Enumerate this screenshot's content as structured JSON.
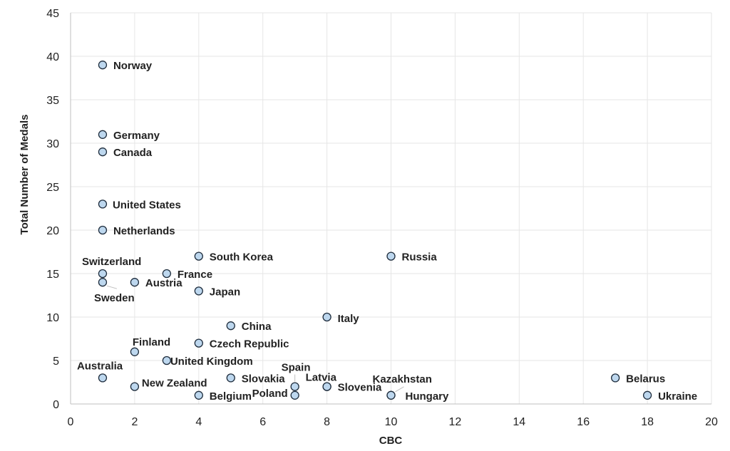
{
  "chart_data": {
    "type": "scatter",
    "title": "",
    "xlabel": "CBC",
    "ylabel": "Total Number of Medals",
    "xlim": [
      0,
      20
    ],
    "ylim": [
      0,
      45
    ],
    "x_ticks": [
      0,
      2,
      4,
      6,
      8,
      10,
      12,
      14,
      16,
      18,
      20
    ],
    "y_ticks": [
      0,
      5,
      10,
      15,
      20,
      25,
      30,
      35,
      40,
      45
    ],
    "grid": true,
    "legend": "none",
    "marker_fill": "#bdd7ee",
    "marker_edge": "#1f2d3d",
    "points": [
      {
        "label": "Norway",
        "x": 1,
        "y": 39
      },
      {
        "label": "Germany",
        "x": 1,
        "y": 31
      },
      {
        "label": "Canada",
        "x": 1,
        "y": 29
      },
      {
        "label": "United States",
        "x": 1,
        "y": 23
      },
      {
        "label": "Netherlands",
        "x": 1,
        "y": 20
      },
      {
        "label": "Switzerland",
        "x": 1,
        "y": 15
      },
      {
        "label": "Sweden",
        "x": 1,
        "y": 14
      },
      {
        "label": "Australia",
        "x": 1,
        "y": 3
      },
      {
        "label": "Austria",
        "x": 2,
        "y": 14
      },
      {
        "label": "Finland",
        "x": 2,
        "y": 6
      },
      {
        "label": "New Zealand",
        "x": 2,
        "y": 2
      },
      {
        "label": "France",
        "x": 3,
        "y": 15
      },
      {
        "label": "United Kingdom",
        "x": 3,
        "y": 5
      },
      {
        "label": "South Korea",
        "x": 4,
        "y": 17
      },
      {
        "label": "Japan",
        "x": 4,
        "y": 13
      },
      {
        "label": "Czech Republic",
        "x": 4,
        "y": 7
      },
      {
        "label": "Belgium",
        "x": 4,
        "y": 1
      },
      {
        "label": "China",
        "x": 5,
        "y": 9
      },
      {
        "label": "Slovakia",
        "x": 5,
        "y": 3
      },
      {
        "label": "Spain",
        "x": 7,
        "y": 2
      },
      {
        "label": "Poland",
        "x": 7,
        "y": 1
      },
      {
        "label": "Italy",
        "x": 8,
        "y": 10
      },
      {
        "label": "Latvia",
        "x": 8,
        "y": 2
      },
      {
        "label": "Slovenia",
        "x": 8,
        "y": 2
      },
      {
        "label": "Russia",
        "x": 10,
        "y": 17
      },
      {
        "label": "Kazakhstan",
        "x": 10,
        "y": 1
      },
      {
        "label": "Hungary",
        "x": 10,
        "y": 1
      },
      {
        "label": "Belarus",
        "x": 17,
        "y": 3
      },
      {
        "label": "Ukraine",
        "x": 18,
        "y": 1
      }
    ]
  }
}
